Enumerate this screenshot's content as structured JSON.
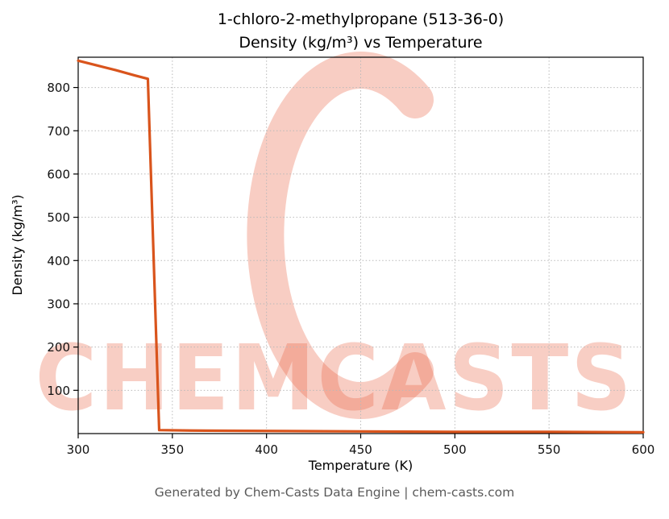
{
  "chart_data": {
    "type": "line",
    "title": "1-chloro-2-methylpropane (513-36-0) Density (kg/m³) vs Temperature",
    "title_line1": "1-chloro-2-methylpropane (513-36-0)",
    "title_line2": "Density (kg/m³) vs Temperature",
    "xlabel": "Temperature (K)",
    "ylabel": "Density (kg/m³)",
    "xlim": [
      300,
      600
    ],
    "ylim": [
      0,
      870
    ],
    "x_ticks": [
      300,
      350,
      400,
      450,
      500,
      550,
      600
    ],
    "y_ticks": [
      100,
      200,
      300,
      400,
      500,
      600,
      700,
      800
    ],
    "grid": "dotted",
    "line_color": "#d9541c",
    "legend": "none",
    "series": [
      {
        "name": "Density",
        "x": [
          300,
          310,
          320,
          330,
          337,
          343,
          360,
          400,
          450,
          500,
          550,
          600
        ],
        "y": [
          862,
          851,
          840,
          828,
          820,
          8,
          7,
          6,
          5,
          4,
          4,
          3
        ]
      }
    ]
  },
  "watermark": {
    "text": "CHEMCASTS",
    "color": "#e85c3c"
  },
  "footer": {
    "text": "Generated by Chem-Casts Data Engine | chem-casts.com"
  }
}
